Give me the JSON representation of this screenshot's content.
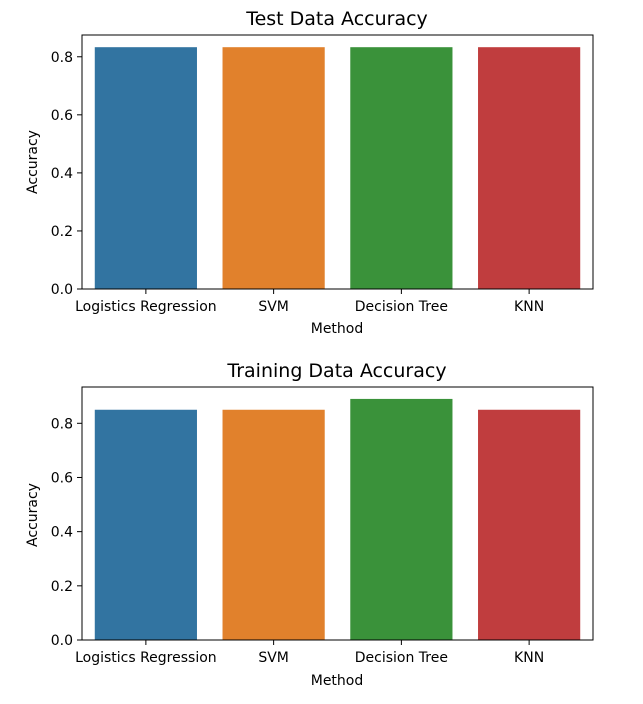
{
  "chart_data": [
    {
      "type": "bar",
      "title": "Test Data Accuracy",
      "xlabel": "Method",
      "ylabel": "Accuracy",
      "categories": [
        "Logistics Regression",
        "SVM",
        "Decision Tree",
        "KNN"
      ],
      "values": [
        0.833,
        0.833,
        0.833,
        0.833
      ],
      "ylim": [
        0,
        0.875
      ],
      "yticks": [
        "0.0",
        "0.2",
        "0.4",
        "0.6",
        "0.8"
      ],
      "colors": [
        "#3274a1",
        "#e1812c",
        "#3a923a",
        "#c03d3e"
      ],
      "grid": false
    },
    {
      "type": "bar",
      "title": "Training Data Accuracy",
      "xlabel": "Method",
      "ylabel": "Accuracy",
      "categories": [
        "Logistics Regression",
        "SVM",
        "Decision Tree",
        "KNN"
      ],
      "values": [
        0.85,
        0.85,
        0.89,
        0.85
      ],
      "ylim": [
        0,
        0.934
      ],
      "yticks": [
        "0.0",
        "0.2",
        "0.4",
        "0.6",
        "0.8"
      ],
      "colors": [
        "#3274a1",
        "#e1812c",
        "#3a923a",
        "#c03d3e"
      ],
      "grid": false
    }
  ]
}
